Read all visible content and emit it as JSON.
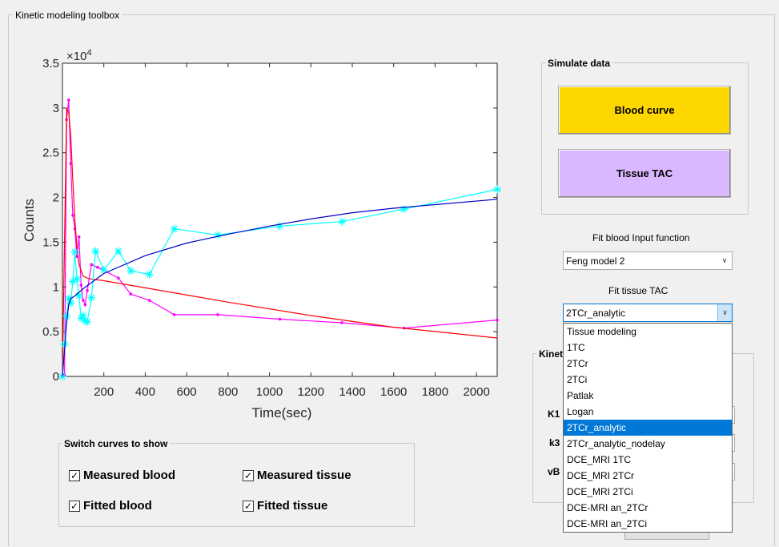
{
  "window": {
    "title": "Kinetic modeling toolbox"
  },
  "simulate": {
    "title": "Simulate data",
    "blood_button": "Blood curve",
    "tissue_button": "Tissue TAC"
  },
  "fit_blood": {
    "label": "Fit blood Input function",
    "value": "Feng model 2"
  },
  "fit_tissue": {
    "label": "Fit tissue TAC",
    "value": "2TCr_analytic",
    "options": [
      "Tissue modeling",
      "1TC",
      "2TCr",
      "2TCi",
      "Patlak",
      "Logan",
      "2TCr_analytic",
      "2TCr_analytic_nodelay",
      "DCE_MRI 1TC",
      "DCE_MRI 2TCr",
      "DCE_MRI 2TCi",
      "DCE-MRI an_2TCr",
      "DCE-MRI an_2TCi"
    ],
    "selected_index": 6
  },
  "kinetic": {
    "title": "Kinet",
    "params": [
      "K1",
      "k3",
      "vB"
    ]
  },
  "switch": {
    "title": "Switch curves to show",
    "measured_blood": "Measured blood",
    "measured_tissue": "Measured tissue",
    "fitted_blood": "Fitted blood",
    "fitted_tissue": "Fitted tissue",
    "check_mark": "✓"
  },
  "colors": {
    "blood_button": "#ffd700",
    "tissue_button": "#d9b8ff",
    "measured_blood": "#ff00ff",
    "fitted_blood": "#ff0000",
    "measured_tissue": "#00ffff",
    "fitted_tissue": "#0000c8"
  },
  "chart_data": {
    "type": "line",
    "xlabel": "Time(sec)",
    "ylabel": "Counts",
    "exponent": "×10^4",
    "xlim": [
      0,
      2100
    ],
    "ylim": [
      0,
      35000
    ],
    "xticks": [
      200,
      400,
      600,
      800,
      1000,
      1200,
      1400,
      1600,
      1800,
      2000
    ],
    "yticks": [
      0,
      0.5,
      1,
      1.5,
      2,
      2.5,
      3,
      3.5
    ],
    "series": [
      {
        "marker": "dot",
        "x": [
          0,
          10,
          20,
          30,
          40,
          50,
          60,
          70,
          80,
          90,
          100,
          110,
          120,
          140,
          170,
          270,
          330,
          420,
          540,
          750,
          1050,
          1350,
          1650,
          2100
        ],
        "y": [
          0,
          200,
          28700,
          30900,
          23800,
          18000,
          16500,
          13400,
          15600,
          10200,
          8500,
          8000,
          9600,
          12500,
          12200,
          11000,
          9200,
          8500,
          6900,
          6900,
          6400,
          6000,
          5400,
          6300
        ]
      },
      {
        "marker": "none",
        "x": [
          0,
          20,
          30,
          40,
          50,
          60,
          70,
          80,
          100,
          130,
          200,
          400,
          800,
          1200,
          1600,
          2100
        ],
        "y": [
          0,
          30000,
          29500,
          27000,
          22000,
          17500,
          14500,
          12500,
          11200,
          10900,
          10700,
          9900,
          8300,
          6800,
          5500,
          4300
        ]
      },
      {
        "marker": "asterisk",
        "x": [
          0,
          10,
          20,
          30,
          40,
          50,
          60,
          70,
          80,
          90,
          100,
          110,
          120,
          140,
          160,
          200,
          270,
          330,
          420,
          540,
          750,
          1050,
          1350,
          1650,
          2100
        ],
        "y": [
          0,
          3600,
          6700,
          8700,
          8200,
          10600,
          13900,
          10900,
          9000,
          6500,
          6800,
          6200,
          6100,
          8800,
          14000,
          11900,
          14000,
          11800,
          11400,
          16500,
          15800,
          16800,
          17300,
          18700,
          20900
        ]
      },
      {
        "marker": "none",
        "x": [
          0,
          10,
          20,
          30,
          40,
          60,
          100,
          200,
          400,
          600,
          800,
          1000,
          1200,
          1400,
          1600,
          1800,
          2100
        ],
        "y": [
          0,
          3000,
          6000,
          8000,
          8700,
          9000,
          9800,
          11500,
          13500,
          14900,
          15900,
          16800,
          17600,
          18300,
          18800,
          19200,
          19800
        ]
      }
    ]
  }
}
